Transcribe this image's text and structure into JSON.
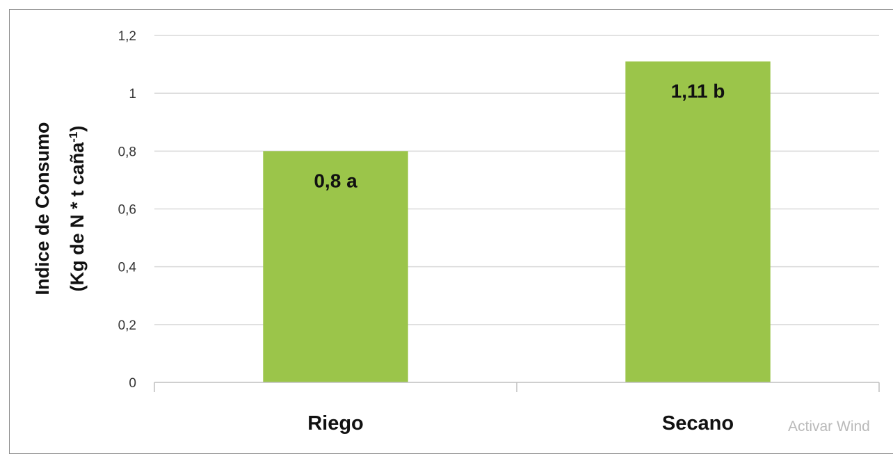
{
  "chart_data": {
    "type": "bar",
    "categories": [
      "Riego",
      "Secano"
    ],
    "values": [
      0.8,
      1.11
    ],
    "data_labels": [
      "0,8 a",
      "1,11 b"
    ],
    "ylabel_line1": "Indice de Consumo",
    "ylabel_line2_pre": "(Kg de N * t caña",
    "ylabel_line2_sup": "-1",
    "ylabel_line2_post": ")",
    "ylim": [
      0,
      1.2
    ],
    "yticks": [
      0,
      0.2,
      0.4,
      0.6,
      0.8,
      1,
      1.2
    ],
    "ytick_labels": [
      "0",
      "0,2",
      "0,4",
      "0,6",
      "0,8",
      "1",
      "1,2"
    ],
    "grid": true,
    "bar_color": "#9bc54a",
    "grid_color": "#d9d9d9"
  },
  "overlay": {
    "watermark_text": "Activar Wind"
  }
}
